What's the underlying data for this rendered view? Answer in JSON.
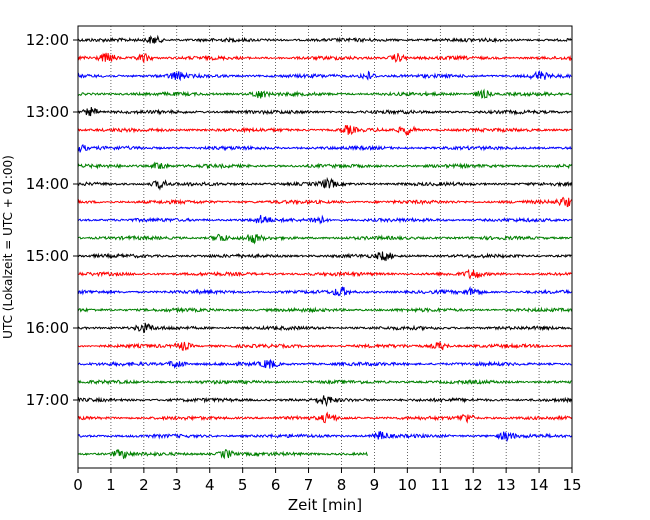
{
  "chart_data": {
    "type": "line",
    "title": "",
    "xlabel": "Zeit  [min]",
    "ylabel": "UTC (Lokalzeit = UTC + 01:00)",
    "xlim": [
      0,
      15
    ],
    "x_ticks": [
      0,
      1,
      2,
      3,
      4,
      5,
      6,
      7,
      8,
      9,
      10,
      11,
      12,
      13,
      14,
      15
    ],
    "y_ticks": [
      "12:00",
      "13:00",
      "14:00",
      "15:00",
      "16:00",
      "17:00"
    ],
    "grid": "vertical dotted at x ticks",
    "legend": "none",
    "trace_interval_min": 15,
    "color_cycle": [
      "#000000",
      "#ff0000",
      "#0000ff",
      "#008000"
    ],
    "traces": [
      {
        "start": "12:00",
        "end_min": 15,
        "events": [
          2.3
        ]
      },
      {
        "start": "12:15",
        "end_min": 15,
        "events": [
          0.9,
          2.0,
          9.7
        ]
      },
      {
        "start": "12:30",
        "end_min": 15,
        "events": [
          3.0,
          8.8,
          14.0
        ]
      },
      {
        "start": "12:45",
        "end_min": 15,
        "events": [
          5.5,
          12.3
        ]
      },
      {
        "start": "13:00",
        "end_min": 15,
        "events": [
          0.4
        ]
      },
      {
        "start": "13:15",
        "end_min": 15,
        "events": [
          8.2,
          10.0
        ]
      },
      {
        "start": "13:30",
        "end_min": 15,
        "events": [
          0.0
        ]
      },
      {
        "start": "13:45",
        "end_min": 15,
        "events": [
          2.5
        ]
      },
      {
        "start": "14:00",
        "end_min": 15,
        "events": [
          2.5,
          7.6
        ]
      },
      {
        "start": "14:15",
        "end_min": 15,
        "events": [
          14.8
        ]
      },
      {
        "start": "14:30",
        "end_min": 15,
        "events": [
          5.6,
          7.3
        ]
      },
      {
        "start": "14:45",
        "end_min": 15,
        "events": [
          4.3,
          5.3
        ]
      },
      {
        "start": "15:00",
        "end_min": 15,
        "events": [
          9.3
        ]
      },
      {
        "start": "15:15",
        "end_min": 15,
        "events": [
          12.0
        ]
      },
      {
        "start": "15:30",
        "end_min": 15,
        "events": [
          8.0,
          12.0
        ]
      },
      {
        "start": "15:45",
        "end_min": 15,
        "events": []
      },
      {
        "start": "16:00",
        "end_min": 15,
        "events": [
          2.0
        ]
      },
      {
        "start": "16:15",
        "end_min": 15,
        "events": [
          3.2,
          11.0
        ]
      },
      {
        "start": "16:30",
        "end_min": 15,
        "events": [
          3.0,
          5.8
        ]
      },
      {
        "start": "16:45",
        "end_min": 15,
        "events": []
      },
      {
        "start": "17:00",
        "end_min": 15,
        "events": [
          7.5
        ]
      },
      {
        "start": "17:15",
        "end_min": 15,
        "events": [
          7.6,
          11.8
        ]
      },
      {
        "start": "17:30",
        "end_min": 15,
        "events": [
          9.2,
          13.0
        ]
      },
      {
        "start": "17:45",
        "end_min": 8.8,
        "events": [
          1.3,
          4.5
        ]
      }
    ]
  }
}
